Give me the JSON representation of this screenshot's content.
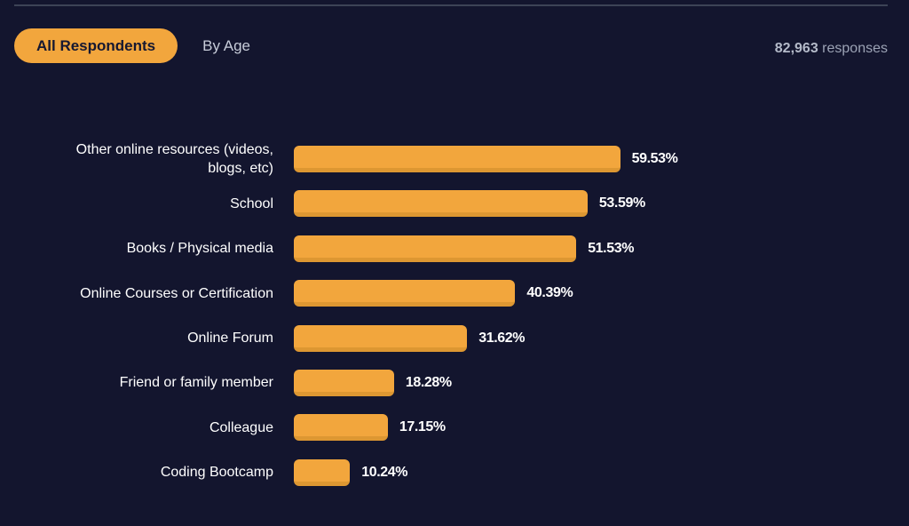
{
  "tabs": [
    {
      "label": "All Respondents",
      "active": true
    },
    {
      "label": "By Age",
      "active": false
    }
  ],
  "responses": {
    "count": "82,963",
    "label": "responses"
  },
  "colors": {
    "background": "#13152e",
    "bar": "#f2a63d",
    "bar_shadow": "#dd9732",
    "active_tab_background": "#f2a63d",
    "active_tab_text": "#161831",
    "inactive_tab_text": "#c7ccd9",
    "label_text": "#ffffff",
    "divider": "#3d4356"
  },
  "chart_data": {
    "type": "bar",
    "orientation": "horizontal",
    "categories": [
      "Other online resources (videos, blogs, etc)",
      "School",
      "Books / Physical media",
      "Online Courses or Certification",
      "Online Forum",
      "Friend or family member",
      "Colleague",
      "Coding Bootcamp"
    ],
    "values": [
      59.53,
      53.59,
      51.53,
      40.39,
      31.62,
      18.28,
      17.15,
      10.24
    ],
    "value_labels": [
      "59.53%",
      "53.59%",
      "51.53%",
      "40.39%",
      "31.62%",
      "18.28%",
      "17.15%",
      "10.24%"
    ],
    "title": "",
    "xlabel": "",
    "ylabel": "",
    "xlim": [
      0,
      100
    ],
    "unit": "%",
    "legend": null,
    "grid": false
  }
}
